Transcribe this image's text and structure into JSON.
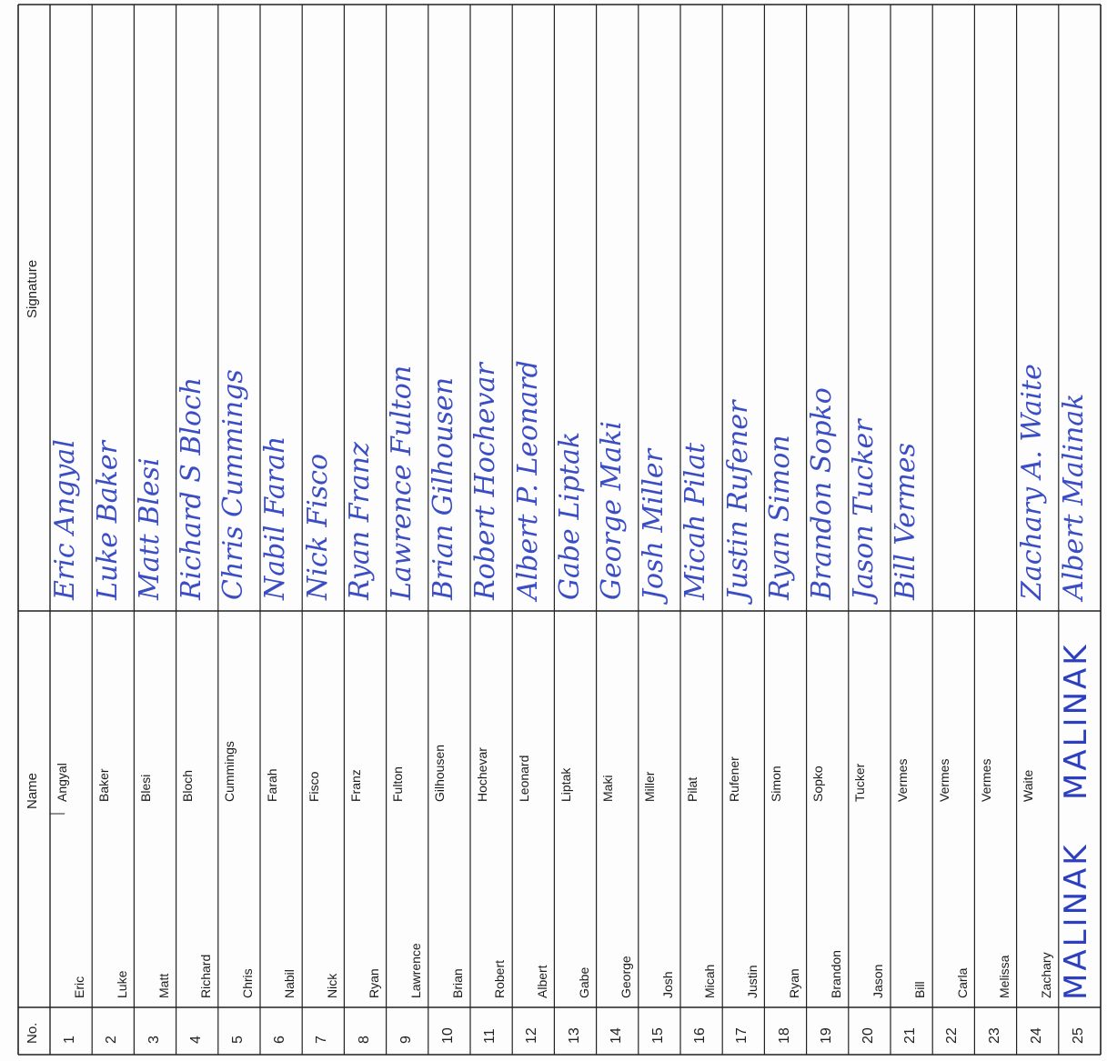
{
  "headers": {
    "no": "No.",
    "name": "Name",
    "signature": "Signature"
  },
  "rows": [
    {
      "no": "1",
      "first": "Eric",
      "last": "Angyal",
      "signature": "Eric Angyal"
    },
    {
      "no": "2",
      "first": "Luke",
      "last": "Baker",
      "signature": "Luke Baker"
    },
    {
      "no": "3",
      "first": "Matt",
      "last": "Blesi",
      "signature": "Matt Blesi"
    },
    {
      "no": "4",
      "first": "Richard",
      "last": "Bloch",
      "signature": "Richard S Bloch"
    },
    {
      "no": "5",
      "first": "Chris",
      "last": "Cummings",
      "signature": "Chris Cummings"
    },
    {
      "no": "6",
      "first": "Nabil",
      "last": "Farah",
      "signature": "Nabil Farah"
    },
    {
      "no": "7",
      "first": "Nick",
      "last": "Fisco",
      "signature": "Nick Fisco"
    },
    {
      "no": "8",
      "first": "Ryan",
      "last": "Franz",
      "signature": "Ryan Franz"
    },
    {
      "no": "9",
      "first": "Lawrence",
      "last": "Fulton",
      "signature": "Lawrence Fulton"
    },
    {
      "no": "10",
      "first": "Brian",
      "last": "Gilhousen",
      "signature": "Brian Gilhousen"
    },
    {
      "no": "11",
      "first": "Robert",
      "last": "Hochevar",
      "signature": "Robert Hochevar"
    },
    {
      "no": "12",
      "first": "Albert",
      "last": "Leonard",
      "signature": "Albert P. Leonard"
    },
    {
      "no": "13",
      "first": "Gabe",
      "last": "Liptak",
      "signature": "Gabe Liptak"
    },
    {
      "no": "14",
      "first": "George",
      "last": "Maki",
      "signature": "George Maki"
    },
    {
      "no": "15",
      "first": "Josh",
      "last": "Miller",
      "signature": "Josh Miller"
    },
    {
      "no": "16",
      "first": "Micah",
      "last": "Pilat",
      "signature": "Micah Pilat"
    },
    {
      "no": "17",
      "first": "Justin",
      "last": "Rufener",
      "signature": "Justin Rufener"
    },
    {
      "no": "18",
      "first": "Ryan",
      "last": "Simon",
      "signature": "Ryan Simon"
    },
    {
      "no": "19",
      "first": "Brandon",
      "last": "Sopko",
      "signature": "Brandon Sopko"
    },
    {
      "no": "20",
      "first": "Jason",
      "last": "Tucker",
      "signature": "Jason Tucker"
    },
    {
      "no": "21",
      "first": "Bill",
      "last": "Vermes",
      "signature": "Bill Vermes"
    },
    {
      "no": "22",
      "first": "Carla",
      "last": "Vermes",
      "signature": ""
    },
    {
      "no": "23",
      "first": "Melissa",
      "last": "Vermes",
      "signature": ""
    },
    {
      "no": "24",
      "first": "Zachary",
      "last": "Waite",
      "signature": "Zachary A. Waite"
    },
    {
      "no": "25",
      "first": "MALINAK",
      "last": "MALINAK",
      "signature": "Albert Malinak"
    }
  ],
  "ink_color": "#2b3fbf",
  "line_color": "#222222"
}
